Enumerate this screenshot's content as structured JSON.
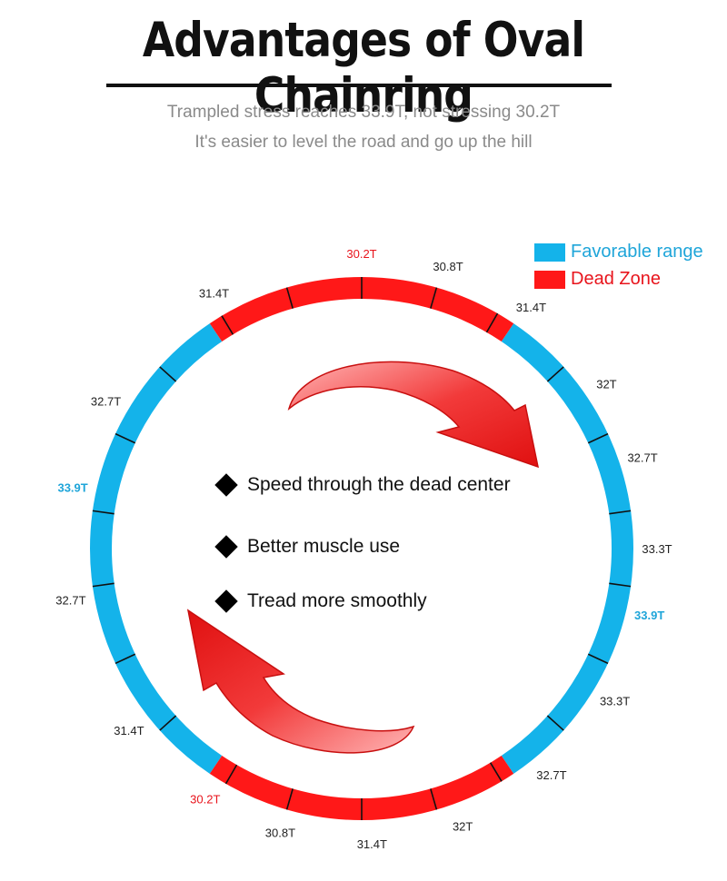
{
  "title": "Advantages of Oval Chainring",
  "subtitle_line1": "Trampled stress reaches 33.9T, not stressing 30.2T",
  "subtitle_line2": "It's easier to level the road and go up the hill",
  "legend": {
    "favorable": "Favorable range",
    "dead": "Dead Zone"
  },
  "colors": {
    "favorable": "#14b3ea",
    "dead": "#ff1818",
    "highlight_blue": "#1ea5d9",
    "highlight_red": "#e8141c",
    "arrow": "#ee2a2a"
  },
  "bullets": [
    "Speed through the dead center",
    "Better muscle use",
    "Tread more smoothly"
  ],
  "ring": {
    "favorable_arcs_deg": [
      [
        34,
        146
      ],
      [
        214,
        326
      ]
    ],
    "dead_arcs_deg": [
      [
        326,
        34
      ],
      [
        146,
        214
      ]
    ],
    "tick_angles_deg": [
      0,
      16,
      30,
      48,
      65,
      82,
      98,
      115,
      132,
      149,
      164,
      180,
      196,
      210,
      228,
      245,
      262,
      278,
      295,
      312,
      329,
      344
    ],
    "labels": [
      {
        "text": "30.2T",
        "angle": 0,
        "highlight": "red"
      },
      {
        "text": "30.8T",
        "angle": 17,
        "highlight": ""
      },
      {
        "text": "31.4T",
        "angle": 35,
        "highlight": ""
      },
      {
        "text": "32T",
        "angle": 56,
        "highlight": ""
      },
      {
        "text": "32.7T",
        "angle": 72,
        "highlight": ""
      },
      {
        "text": "33.3T",
        "angle": 90,
        "highlight": ""
      },
      {
        "text": "33.9T",
        "angle": 103,
        "highlight": "blue"
      },
      {
        "text": "33.3T",
        "angle": 121,
        "highlight": ""
      },
      {
        "text": "32.7T",
        "angle": 140,
        "highlight": ""
      },
      {
        "text": "32T",
        "angle": 160,
        "highlight": ""
      },
      {
        "text": "31.4T",
        "angle": 178,
        "highlight": ""
      },
      {
        "text": "30.8T",
        "angle": 196,
        "highlight": ""
      },
      {
        "text": "30.2T",
        "angle": 212,
        "highlight": "red"
      },
      {
        "text": "31.4T",
        "angle": 232,
        "highlight": ""
      },
      {
        "text": "32.7T",
        "angle": 260,
        "highlight": ""
      },
      {
        "text": "33.9T",
        "angle": 282,
        "highlight": "blue"
      },
      {
        "text": "32.7T",
        "angle": 300,
        "highlight": ""
      },
      {
        "text": "31.4T",
        "angle": 330,
        "highlight": ""
      }
    ]
  }
}
